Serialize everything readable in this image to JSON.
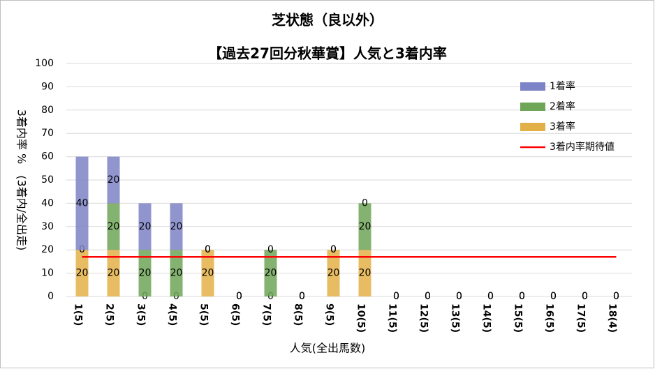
{
  "chart_data": {
    "type": "stacked_bar",
    "title": "芝状態（良以外）",
    "subtitle": "【過去27回分秋華賞】人気と3着内率",
    "x_label": "人気(全出馬数)",
    "y_label": "3着内率 %　(3着内/全出走)",
    "categories": [
      "1(5)",
      "2(5)",
      "3(5)",
      "4(5)",
      "5(5)",
      "6(5)",
      "7(5)",
      "8(5)",
      "9(5)",
      "10(5)",
      "11(5)",
      "12(5)",
      "13(5)",
      "14(5)",
      "15(5)",
      "16(5)",
      "17(5)",
      "18(4)"
    ],
    "series": [
      {
        "name": "3着率",
        "color": "#e3b048",
        "values": [
          20,
          20,
          0,
          0,
          20,
          0,
          0,
          0,
          20,
          20,
          0,
          0,
          0,
          0,
          0,
          0,
          0,
          0
        ]
      },
      {
        "name": "2着率",
        "color": "#6fa557",
        "values": [
          0,
          20,
          20,
          20,
          0,
          0,
          20,
          0,
          0,
          20,
          0,
          0,
          0,
          0,
          0,
          0,
          0,
          0
        ]
      },
      {
        "name": "1着率",
        "color": "#7c83c6",
        "values": [
          40,
          20,
          20,
          20,
          0,
          0,
          0,
          0,
          0,
          0,
          0,
          0,
          0,
          0,
          0,
          0,
          0,
          0
        ]
      }
    ],
    "legend_order": [
      2,
      1,
      0
    ],
    "expected_line": {
      "name": "3着内率期待値",
      "value": 17,
      "color": "#ff0000"
    },
    "ylim": [
      0,
      100
    ],
    "yticks": [
      0,
      10,
      20,
      30,
      40,
      50,
      60,
      70,
      80,
      90,
      100
    ],
    "grid": true
  }
}
